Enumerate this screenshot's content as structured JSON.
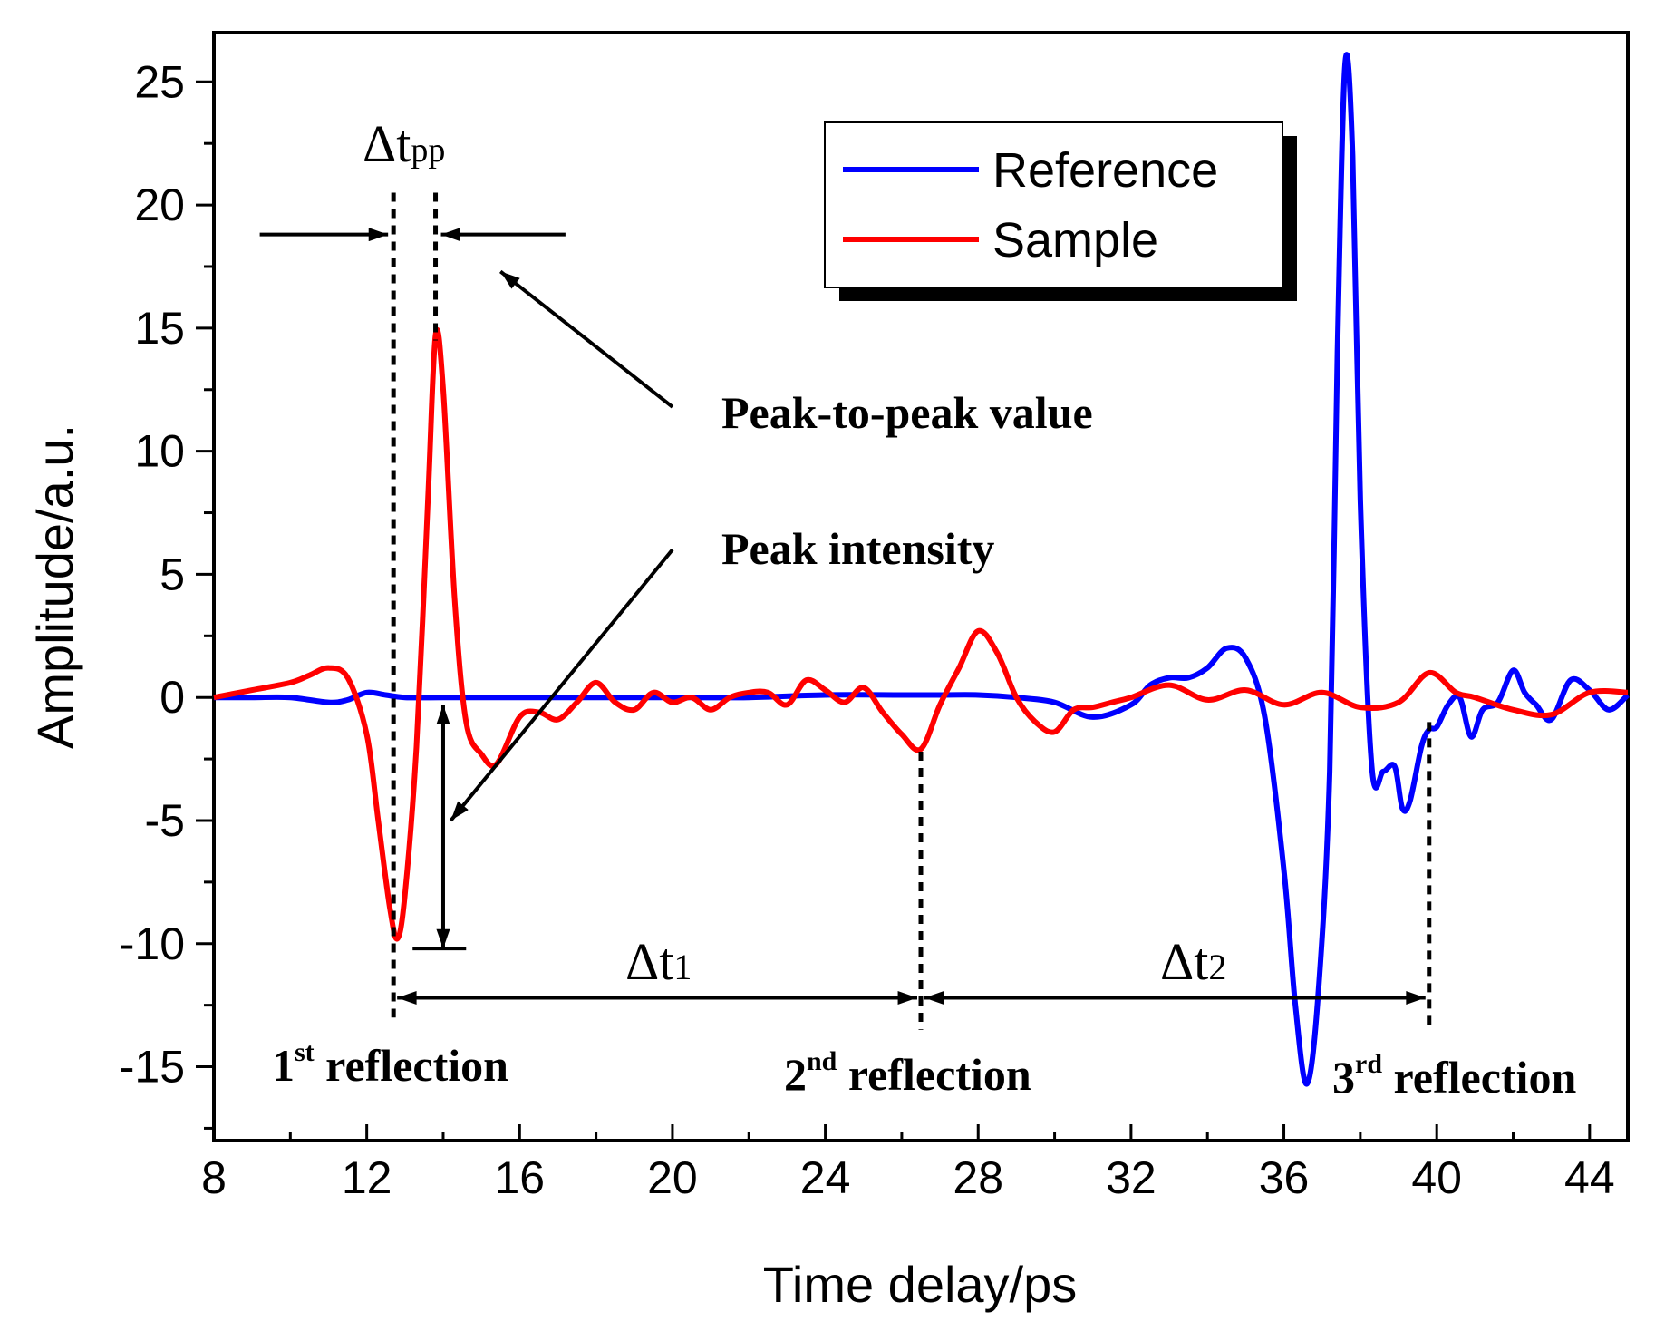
{
  "chart_data": {
    "type": "line",
    "title": "",
    "xlabel": "Time delay/ps",
    "ylabel": "Amplitude/a.u.",
    "xlim": [
      8,
      45
    ],
    "ylim": [
      -18,
      27
    ],
    "x_ticks": [
      8,
      12,
      16,
      20,
      24,
      28,
      32,
      36,
      40,
      44
    ],
    "y_ticks": [
      -15,
      -10,
      -5,
      0,
      5,
      10,
      15,
      20,
      25
    ],
    "grid": false,
    "legend": {
      "position": "top-right",
      "entries": [
        "Reference",
        "Sample"
      ]
    },
    "series": [
      {
        "name": "Reference",
        "color": "#0000ff",
        "x": [
          8,
          9,
          10,
          11,
          11.5,
          12,
          12.5,
          13,
          14,
          16,
          18,
          20,
          22,
          24,
          26,
          27,
          28,
          29,
          30,
          31,
          32,
          32.5,
          33,
          33.5,
          34,
          34.5,
          35,
          35.5,
          36,
          36.3,
          36.6,
          36.9,
          37.2,
          37.4,
          37.6,
          37.8,
          38.0,
          38.3,
          38.6,
          38.9,
          39.1,
          39.3,
          39.6,
          39.8,
          40,
          40.3,
          40.6,
          40.9,
          41.2,
          41.6,
          42,
          42.3,
          42.6,
          43,
          43.5,
          44,
          44.5,
          45
        ],
        "values": [
          0,
          0,
          0,
          -0.2,
          -0.1,
          0.2,
          0.1,
          0,
          0,
          0,
          0,
          0,
          0,
          0.1,
          0.1,
          0.1,
          0.1,
          0,
          -0.2,
          -0.8,
          -0.3,
          0.5,
          0.8,
          0.8,
          1.2,
          2.0,
          1.6,
          -0.8,
          -7,
          -12.5,
          -15.7,
          -12,
          -3,
          14,
          25.7,
          22,
          8,
          -2.8,
          -3,
          -2.8,
          -4.5,
          -4.2,
          -2,
          -1.3,
          -1.2,
          -0.3,
          0,
          -1.6,
          -0.5,
          -0.2,
          1.1,
          0.2,
          -0.3,
          -0.9,
          0.7,
          0.3,
          -0.5,
          0.1
        ]
      },
      {
        "name": "Sample",
        "color": "#ff0000",
        "x": [
          8,
          9,
          10,
          10.5,
          11,
          11.5,
          12,
          12.3,
          12.6,
          12.8,
          13.0,
          13.3,
          13.6,
          13.8,
          14.0,
          14.3,
          14.6,
          15,
          15.4,
          16,
          16.5,
          17,
          17.5,
          18,
          18.5,
          19,
          19.5,
          20,
          20.5,
          21,
          21.5,
          22,
          22.5,
          23,
          23.5,
          24,
          24.5,
          25,
          25.5,
          26,
          26.5,
          27,
          27.5,
          28,
          28.5,
          29,
          29.5,
          30,
          30.5,
          31,
          31.5,
          32,
          33,
          34,
          35,
          36,
          37,
          38,
          39,
          39.8,
          40.5,
          41,
          42,
          43,
          44,
          45
        ],
        "values": [
          0,
          0.3,
          0.6,
          0.9,
          1.2,
          0.8,
          -1.5,
          -5,
          -8.5,
          -9.8,
          -8,
          -2,
          8,
          14.7,
          12.5,
          4,
          -1,
          -2.3,
          -2.7,
          -0.8,
          -0.6,
          -0.9,
          -0.2,
          0.6,
          -0.2,
          -0.5,
          0.2,
          -0.2,
          0,
          -0.5,
          0,
          0.2,
          0.2,
          -0.3,
          0.7,
          0.3,
          -0.2,
          0.4,
          -0.6,
          -1.5,
          -2.1,
          -0.3,
          1.2,
          2.7,
          1.8,
          0,
          -1.0,
          -1.4,
          -0.5,
          -0.4,
          -0.2,
          0,
          0.5,
          -0.1,
          0.3,
          -0.3,
          0.2,
          -0.4,
          -0.2,
          1.0,
          0.2,
          0,
          -0.5,
          -0.7,
          0.2,
          0.2
        ]
      }
    ],
    "annotations": {
      "dtpp": {
        "main": "Δt",
        "sub": "pp"
      },
      "peak_to_peak": "Peak-to-peak value",
      "peak_intensity": "Peak intensity",
      "dt1": {
        "main": "Δt",
        "sub": "1"
      },
      "dt2": {
        "main": "Δt",
        "sub": "2"
      },
      "reflection1": {
        "num": "1",
        "sup": "st",
        "word": " reflection"
      },
      "reflection2": {
        "num": "2",
        "sup": "nd",
        "word": " reflection"
      },
      "reflection3": {
        "num": "3",
        "sup": "rd",
        "word": " reflection"
      },
      "markers_x": {
        "first": 12.7,
        "peak_pos": 13.8,
        "second": 26.5,
        "third": 39.8
      }
    }
  }
}
